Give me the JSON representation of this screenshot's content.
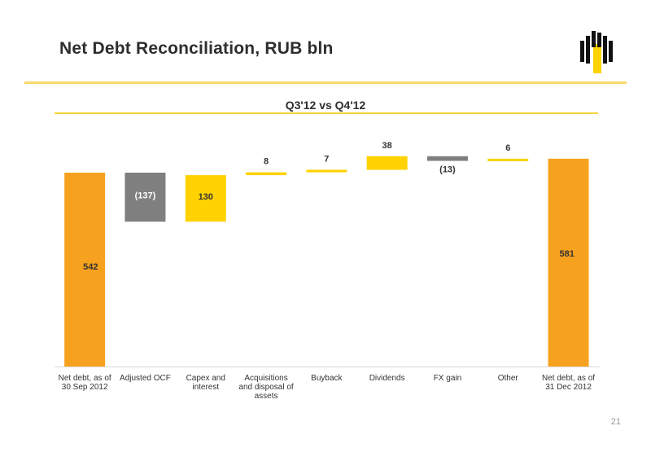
{
  "header": {
    "title": "Net Debt Reconciliation, RUB bln",
    "logo_icon": "rosneft-logo-icon"
  },
  "page_number": "21",
  "colors": {
    "orange": "#f7a21e",
    "yellow": "#ffd200",
    "gray": "#7f7f7f"
  },
  "chart_data": {
    "type": "bar",
    "subtitle": "Q3'12 vs Q4'12",
    "categories": [
      "Net debt, as of 30 Sep 2012",
      "Adjusted OCF",
      "Capex and interest",
      "Acquisitions and disposal of assets",
      "Buyback",
      "Dividends",
      "FX gain",
      "Other",
      "Net debt, as of 31 Dec 2012"
    ],
    "values": [
      542,
      -137,
      130,
      8,
      7,
      38,
      -13,
      6,
      581
    ],
    "data_labels": [
      "542",
      "(137)",
      "130",
      "8",
      "7",
      "38",
      "(13)",
      "6",
      "581"
    ],
    "kinds": [
      "total",
      "decrease",
      "increase",
      "increase",
      "increase",
      "increase",
      "decrease",
      "increase",
      "total"
    ],
    "xlabel": "",
    "ylabel": "",
    "grid": false,
    "legend": "none"
  }
}
